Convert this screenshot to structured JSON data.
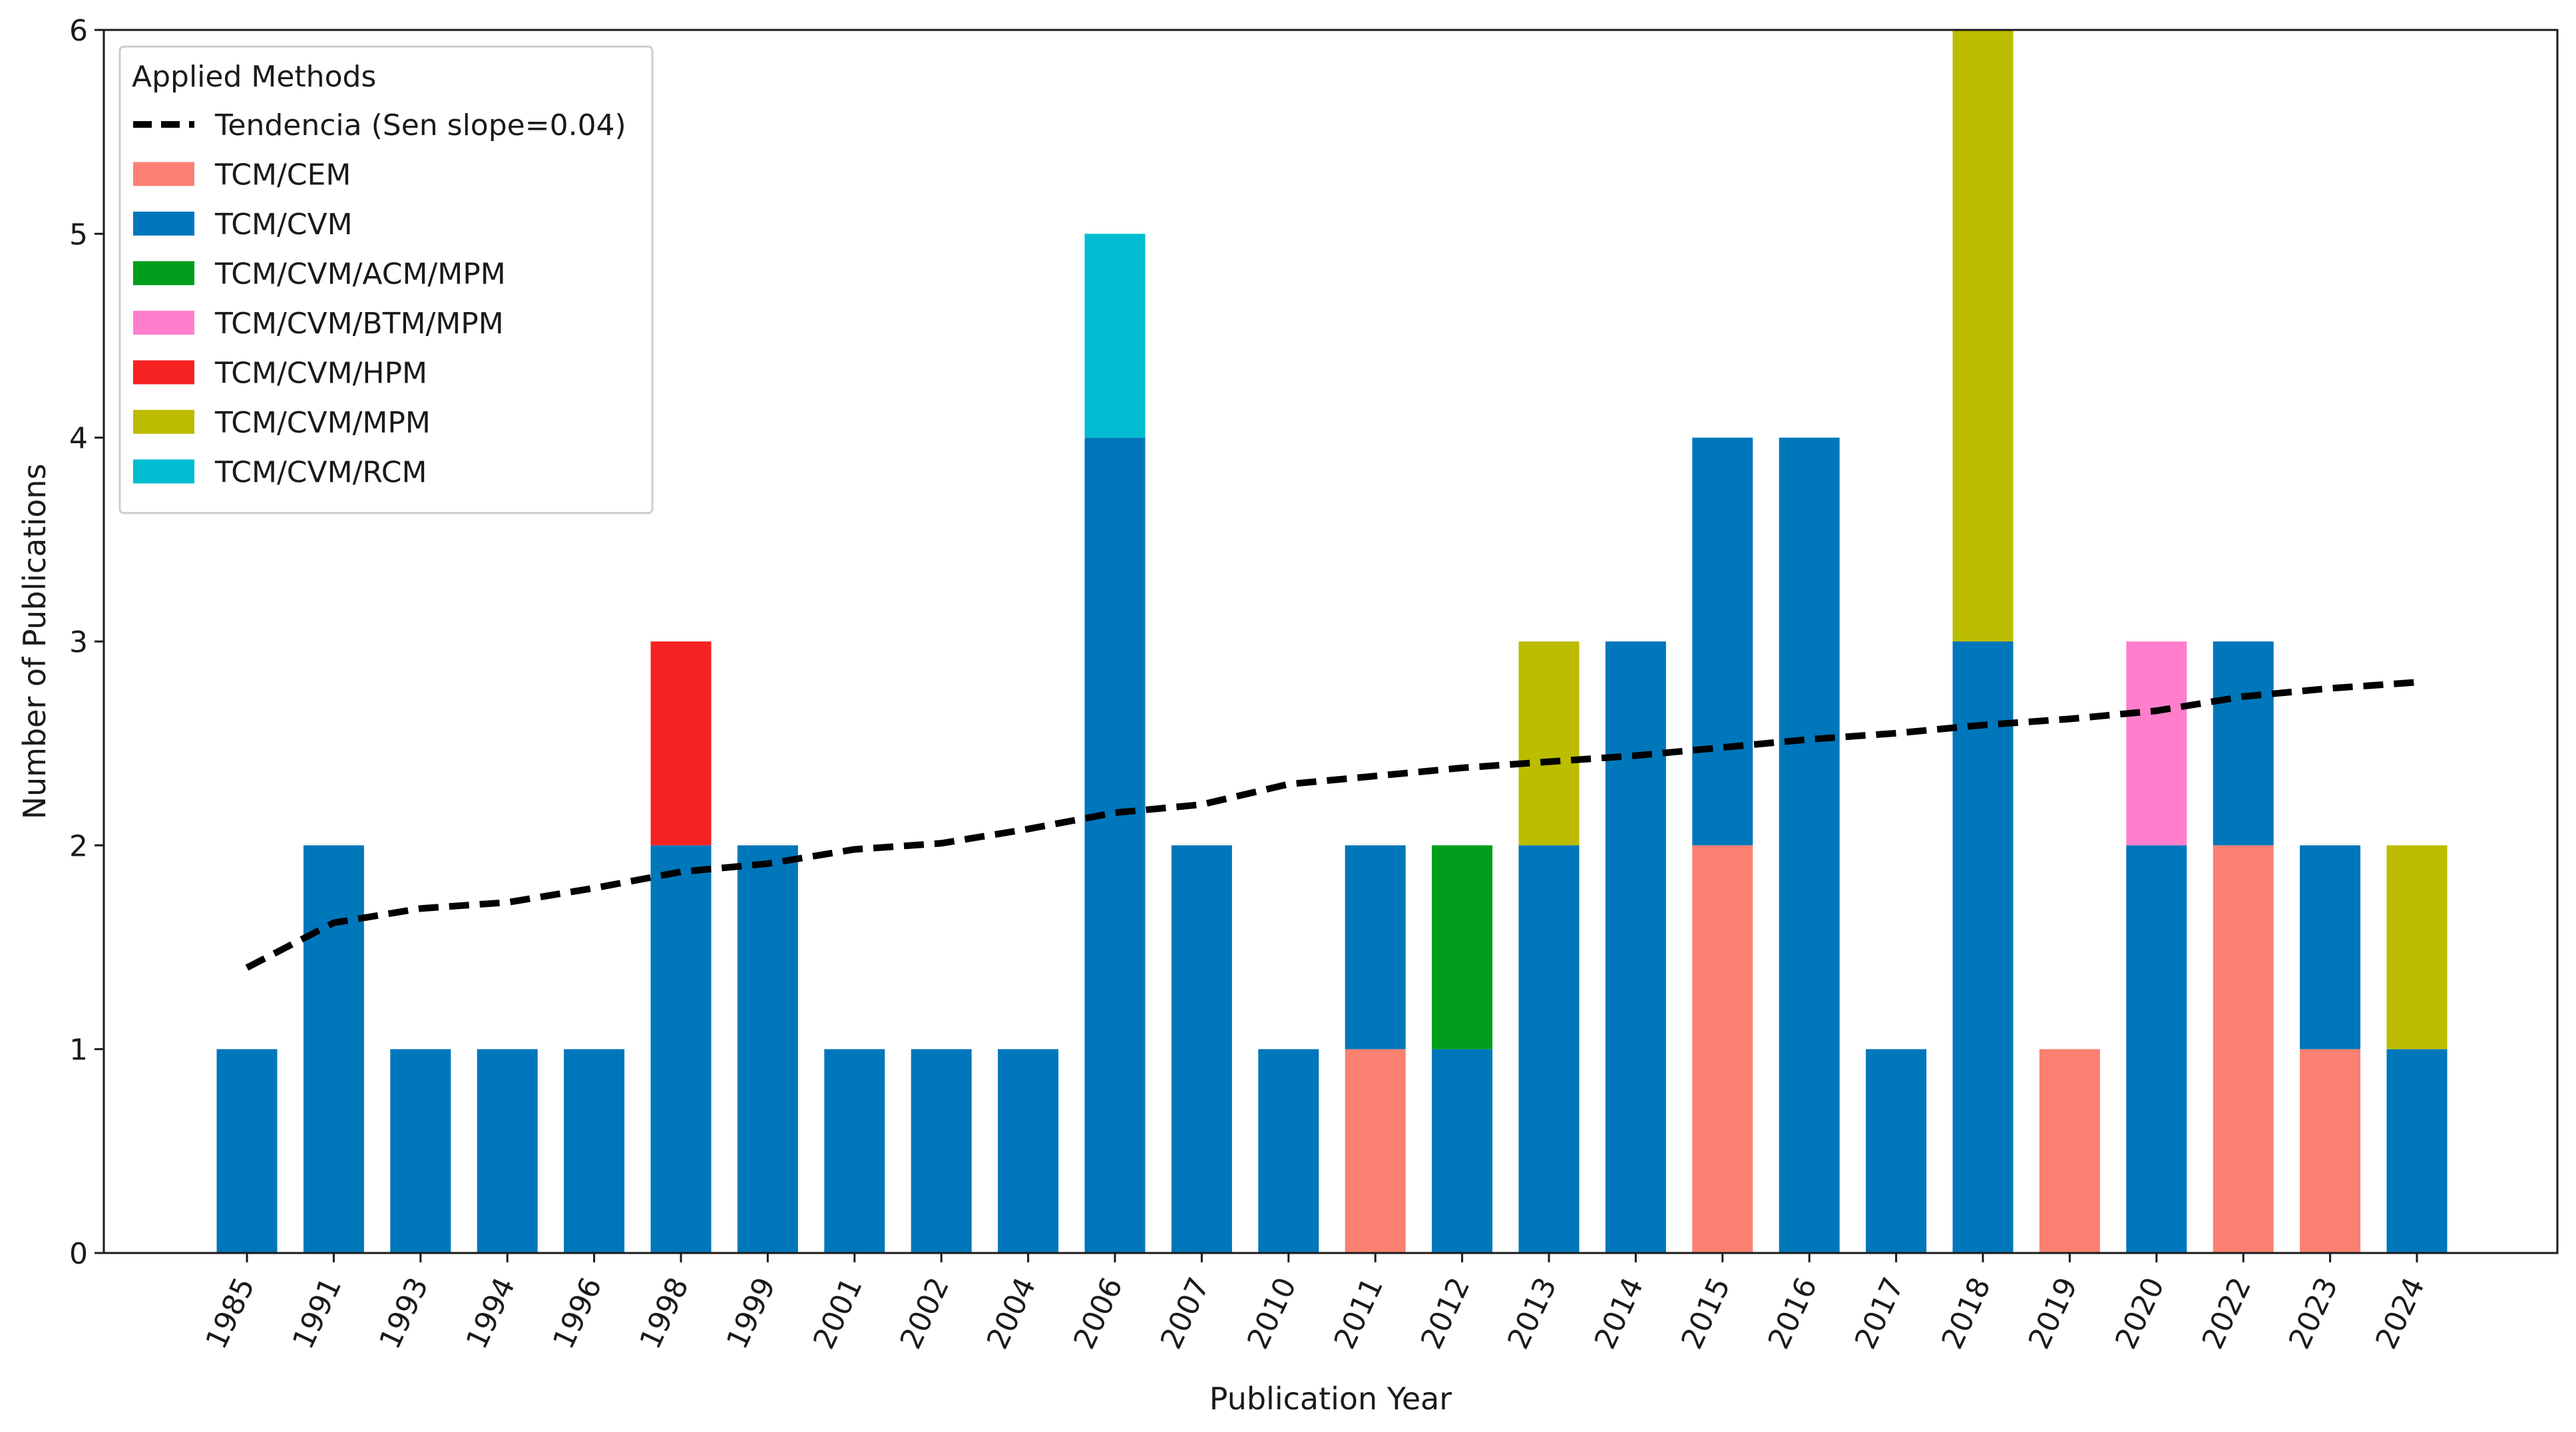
{
  "chart_data": {
    "type": "bar",
    "stacked": true,
    "title": "",
    "xlabel": "Publication Year",
    "ylabel": "Number of Publications",
    "ylim": [
      0,
      6
    ],
    "yticks": [
      0,
      1,
      2,
      3,
      4,
      5,
      6
    ],
    "categories": [
      "1985",
      "1991",
      "1993",
      "1994",
      "1996",
      "1998",
      "1999",
      "2001",
      "2002",
      "2004",
      "2006",
      "2007",
      "2010",
      "2011",
      "2012",
      "2013",
      "2014",
      "2015",
      "2016",
      "2017",
      "2018",
      "2019",
      "2020",
      "2022",
      "2023",
      "2024"
    ],
    "series": [
      {
        "name": "TCM/CEM",
        "color": "#fa8072",
        "values": [
          0,
          0,
          0,
          0,
          0,
          0,
          0,
          0,
          0,
          0,
          0,
          0,
          0,
          1,
          0,
          0,
          0,
          2,
          0,
          0,
          0,
          1,
          0,
          2,
          1,
          0
        ]
      },
      {
        "name": "TCM/CVM",
        "color": "#0077bb",
        "values": [
          1,
          2,
          1,
          1,
          1,
          2,
          2,
          1,
          1,
          1,
          4,
          2,
          1,
          1,
          1,
          2,
          3,
          2,
          4,
          1,
          3,
          0,
          2,
          1,
          1,
          1
        ]
      },
      {
        "name": "TCM/CVM/ACM/MPM",
        "color": "#009e1c",
        "values": [
          0,
          0,
          0,
          0,
          0,
          0,
          0,
          0,
          0,
          0,
          0,
          0,
          0,
          0,
          1,
          0,
          0,
          0,
          0,
          0,
          0,
          0,
          0,
          0,
          0,
          0
        ]
      },
      {
        "name": "TCM/CVM/BTM/MPM",
        "color": "#ff7fcc",
        "values": [
          0,
          0,
          0,
          0,
          0,
          0,
          0,
          0,
          0,
          0,
          0,
          0,
          0,
          0,
          0,
          0,
          0,
          0,
          0,
          0,
          0,
          0,
          1,
          0,
          0,
          0
        ]
      },
      {
        "name": "TCM/CVM/HPM",
        "color": "#f62222",
        "values": [
          0,
          0,
          0,
          0,
          0,
          1,
          0,
          0,
          0,
          0,
          0,
          0,
          0,
          0,
          0,
          0,
          0,
          0,
          0,
          0,
          0,
          0,
          0,
          0,
          0,
          0
        ]
      },
      {
        "name": "TCM/CVM/MPM",
        "color": "#bcbd00",
        "values": [
          0,
          0,
          0,
          0,
          0,
          0,
          0,
          0,
          0,
          0,
          0,
          0,
          0,
          0,
          0,
          1,
          0,
          0,
          0,
          0,
          3,
          0,
          0,
          0,
          0,
          1
        ]
      },
      {
        "name": "TCM/CVM/RCM",
        "color": "#00bcd0",
        "values": [
          0,
          0,
          0,
          0,
          0,
          0,
          0,
          0,
          0,
          0,
          1,
          0,
          0,
          0,
          0,
          0,
          0,
          0,
          0,
          0,
          0,
          0,
          0,
          0,
          0,
          0
        ]
      }
    ],
    "trend": {
      "name": "Tendencia (Sen slope=0.04)",
      "color": "#000000",
      "values": [
        1.4,
        1.62,
        1.69,
        1.72,
        1.79,
        1.87,
        1.91,
        1.98,
        2.01,
        2.08,
        2.16,
        2.2,
        2.3,
        2.34,
        2.38,
        2.41,
        2.44,
        2.48,
        2.52,
        2.55,
        2.59,
        2.62,
        2.66,
        2.73,
        2.77,
        2.8
      ]
    },
    "legend": {
      "title": "Applied Methods",
      "placement": "top-left"
    }
  }
}
